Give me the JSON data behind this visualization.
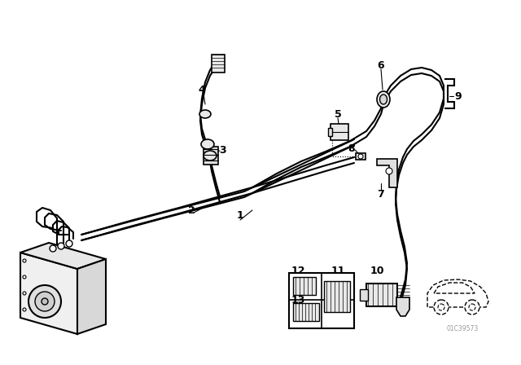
{
  "background_color": "#ffffff",
  "line_color": "#000000",
  "fig_width": 6.4,
  "fig_height": 4.48,
  "dpi": 100,
  "watermark": "01C39573"
}
